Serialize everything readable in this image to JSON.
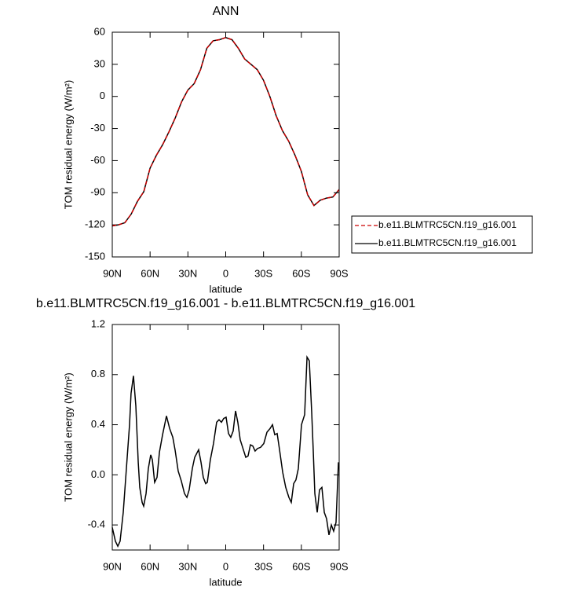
{
  "chart_data": [
    {
      "type": "line",
      "title": "ANN",
      "xlabel": "latitude",
      "ylabel": "TOM residual energy (W/m²)",
      "x": [
        90,
        85,
        80,
        75,
        70,
        65,
        60,
        55,
        50,
        45,
        40,
        35,
        30,
        25,
        20,
        15,
        10,
        5,
        0,
        -5,
        -10,
        -15,
        -20,
        -25,
        -30,
        -35,
        -40,
        -45,
        -50,
        -55,
        -60,
        -65,
        -70,
        -75,
        -80,
        -85,
        -90
      ],
      "series": [
        {
          "name": "b.e11.BLMTRC5CN.f19_g16.001",
          "color": "#cc0000",
          "dash": "dashed",
          "values": [
            -121,
            -120,
            -118,
            -110,
            -98,
            -89,
            -67,
            -55,
            -45,
            -33,
            -20,
            -5,
            6,
            12,
            25,
            45,
            52,
            53,
            55,
            53,
            45,
            35,
            30,
            25,
            15,
            0,
            -18,
            -32,
            -42,
            -55,
            -70,
            -92,
            -102,
            -97,
            -95,
            -94,
            -87
          ]
        },
        {
          "name": "b.e11.BLMTRC5CN.f19_g16.001",
          "color": "#000000",
          "dash": "solid",
          "values": [
            -121,
            -120,
            -118,
            -110,
            -98,
            -89,
            -67,
            -55,
            -45,
            -33,
            -20,
            -5,
            6,
            12,
            25,
            45,
            52,
            53,
            55,
            53,
            45,
            35,
            30,
            25,
            15,
            0,
            -18,
            -32,
            -42,
            -55,
            -70,
            -92,
            -102,
            -97,
            -95,
            -94,
            -87
          ]
        }
      ],
      "xlim": [
        90,
        -90
      ],
      "xticks": [
        {
          "value": 90,
          "label": "90N"
        },
        {
          "value": 60,
          "label": "60N"
        },
        {
          "value": 30,
          "label": "30N"
        },
        0,
        {
          "value": -30,
          "label": "30S"
        },
        {
          "value": -60,
          "label": "60S"
        },
        {
          "value": -90,
          "label": "90S"
        }
      ],
      "ylim": [
        -150,
        60
      ],
      "yticks": [
        60,
        30,
        0,
        -30,
        -60,
        -90,
        -120,
        -150
      ],
      "legend": "right"
    },
    {
      "type": "line",
      "title": "b.e11.BLMTRC5CN.f19_g16.001 - b.e11.BLMTRC5CN.f19_g16.001",
      "xlabel": "latitude",
      "ylabel": "TOM residual energy (W/m²)",
      "x": [
        90,
        87.5,
        85.6,
        83.8,
        81.3,
        78.8,
        76.3,
        75.1,
        73.2,
        71.3,
        69.4,
        68.2,
        66.3,
        65.1,
        63.2,
        61.4,
        59.5,
        58.2,
        56.4,
        54.5,
        52.6,
        50.1,
        47.0,
        44.5,
        42.0,
        40.2,
        37.7,
        35.2,
        32.7,
        30.8,
        29.0,
        26.5,
        24.6,
        21.5,
        19.6,
        17.8,
        15.9,
        14.6,
        12.2,
        9.7,
        7.2,
        5.3,
        3.4,
        1.6,
        -0.3,
        -2.2,
        -4.0,
        -5.9,
        -7.8,
        -9.6,
        -11.5,
        -14.0,
        -15.9,
        -17.7,
        -19.6,
        -21.5,
        -23.3,
        -25.2,
        -27.7,
        -30.2,
        -32.7,
        -35.2,
        -37.1,
        -38.9,
        -40.8,
        -42.7,
        -45.2,
        -47.6,
        -50.1,
        -52.0,
        -53.9,
        -55.7,
        -57.6,
        -60.1,
        -62.6,
        -64.5,
        -66.3,
        -68.2,
        -69.4,
        -70.7,
        -72.6,
        -74.4,
        -76.3,
        -78.2,
        -80.0,
        -81.9,
        -83.8,
        -85.6,
        -87.5,
        -89.4
      ],
      "values": [
        -0.42,
        -0.53,
        -0.57,
        -0.53,
        -0.3,
        0.05,
        0.4,
        0.65,
        0.79,
        0.55,
        0.1,
        -0.1,
        -0.22,
        -0.25,
        -0.15,
        0.05,
        0.16,
        0.12,
        -0.06,
        -0.02,
        0.18,
        0.32,
        0.47,
        0.37,
        0.3,
        0.2,
        0.03,
        -0.05,
        -0.15,
        -0.18,
        -0.12,
        0.05,
        0.14,
        0.2,
        0.1,
        -0.02,
        -0.07,
        -0.06,
        0.12,
        0.25,
        0.42,
        0.44,
        0.42,
        0.45,
        0.46,
        0.33,
        0.3,
        0.35,
        0.51,
        0.42,
        0.28,
        0.2,
        0.14,
        0.15,
        0.24,
        0.23,
        0.19,
        0.21,
        0.22,
        0.25,
        0.34,
        0.37,
        0.4,
        0.32,
        0.33,
        0.2,
        0.02,
        -0.1,
        -0.18,
        -0.22,
        -0.07,
        -0.04,
        0.05,
        0.4,
        0.48,
        0.94,
        0.91,
        0.5,
        0.2,
        -0.15,
        -0.3,
        -0.12,
        -0.1,
        -0.3,
        -0.35,
        -0.48,
        -0.4,
        -0.45,
        -0.38,
        0.1
      ],
      "color": "#000000",
      "xlim": [
        90,
        -90
      ],
      "xticks": [
        {
          "value": 90,
          "label": "90N"
        },
        {
          "value": 60,
          "label": "60N"
        },
        {
          "value": 30,
          "label": "30N"
        },
        0,
        {
          "value": -30,
          "label": "30S"
        },
        {
          "value": -60,
          "label": "60S"
        },
        {
          "value": -90,
          "label": "90S"
        }
      ],
      "ylim": [
        -0.6,
        1.2
      ],
      "yticks": [
        1.2,
        0.8,
        0.4,
        {
          "value": 0,
          "label": "0.0"
        },
        -0.4
      ]
    }
  ]
}
